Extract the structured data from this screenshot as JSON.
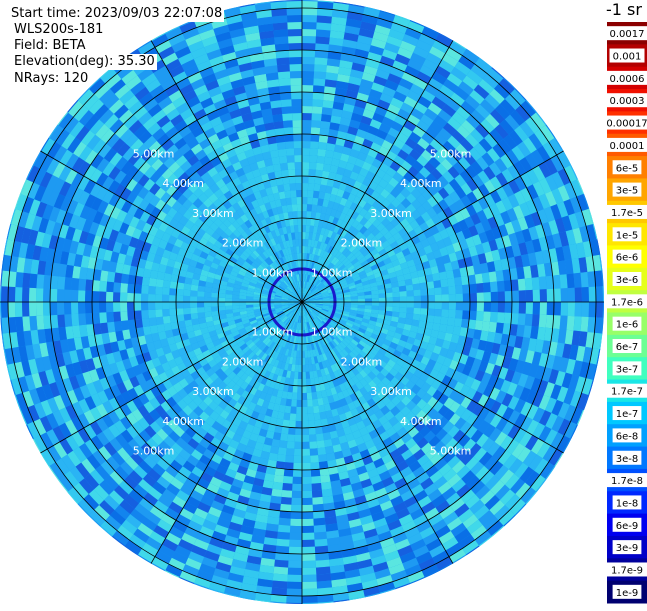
{
  "header": {
    "start_time": "Start time: 2023/09/03 22:07:08",
    "instrument": "WLS200s-181",
    "field": "Field: BETA",
    "elevation": "Elevation(deg): 35.30",
    "nrays": "NRays: 120"
  },
  "colorbar": {
    "unit_label": "-1 sr",
    "labels": [
      "0.0017",
      "0.001",
      "0.0006",
      "0.0003",
      "0.00017",
      "0.0001",
      "6e-5",
      "3e-5",
      "1.7e-5",
      "1e-5",
      "6e-6",
      "3e-6",
      "1.7e-6",
      "1e-6",
      "6e-7",
      "3e-7",
      "1.7e-7",
      "1e-7",
      "6e-8",
      "3e-8",
      "1.7e-8",
      "1e-8",
      "6e-9",
      "3e-9",
      "1.7e-9",
      "1e-9"
    ],
    "colors": [
      "#8b0000",
      "#b30000",
      "#d40000",
      "#f01000",
      "#ff3000",
      "#ff5a00",
      "#ff7f00",
      "#ffa500",
      "#ffc800",
      "#ffe600",
      "#ffff00",
      "#e6ff1a",
      "#c0ff40",
      "#98ff68",
      "#6cff94",
      "#40ffbf",
      "#1ae6e6",
      "#00c8ff",
      "#00a0ff",
      "#0078ff",
      "#0050ff",
      "#0028ff",
      "#0000f0",
      "#0000c8",
      "#00009c",
      "#000070"
    ]
  },
  "plot": {
    "range_unit": "km",
    "ring_labels": [
      "1.00km",
      "2.00km",
      "3.00km",
      "4.00km",
      "5.00km"
    ]
  }
}
